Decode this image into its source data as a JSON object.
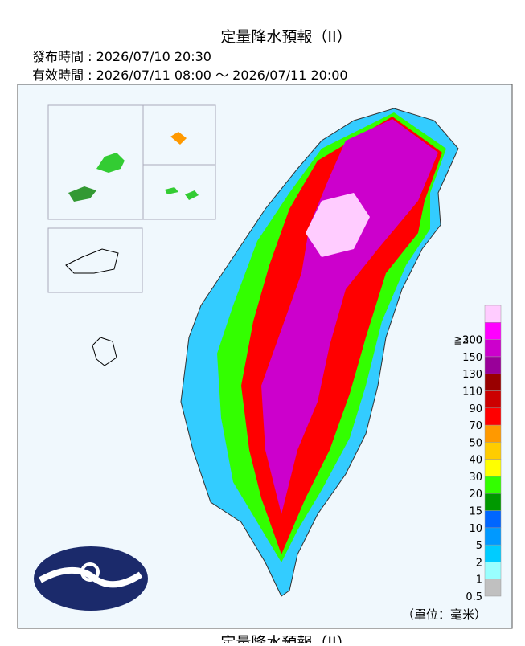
{
  "header": {
    "title": "定量降水預報（II）",
    "issued": "發布時間 : 2026/07/10 20:30",
    "valid": "有效時間 : 2026/07/11 08:00 ～ 2026/07/11 20:00"
  },
  "legend": {
    "levels": [
      "0.5",
      "1",
      "2",
      "5",
      "10",
      "15",
      "20",
      "30",
      "40",
      "50",
      "70",
      "90",
      "110",
      "130",
      "150",
      "200",
      "≧300"
    ],
    "colors": [
      "#c0c0c0",
      "#99ffff",
      "#00ccff",
      "#0099ff",
      "#0066ff",
      "#009900",
      "#33ff00",
      "#ffff00",
      "#ffcc00",
      "#ff9900",
      "#ff0000",
      "#cc0000",
      "#990000",
      "#990099",
      "#cc00cc",
      "#ff00ff",
      "#ffccff"
    ],
    "unit": "（單位：毫米）"
  },
  "footer": {
    "next_title": "定量降水預報（II）"
  }
}
